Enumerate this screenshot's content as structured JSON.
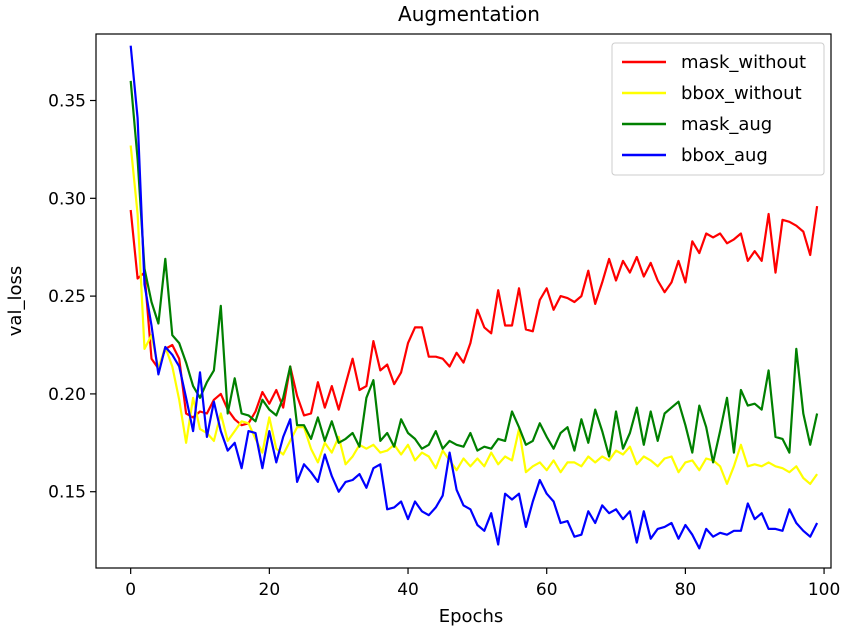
{
  "chart_data": {
    "type": "line",
    "title": "Augmentation",
    "xlabel": "Epochs",
    "ylabel": "val_loss",
    "xlim": [
      -5,
      101
    ],
    "ylim": [
      0.111,
      0.384
    ],
    "xticks": [
      0,
      20,
      40,
      60,
      80,
      100
    ],
    "yticks": [
      0.15,
      0.2,
      0.25,
      0.3,
      0.35
    ],
    "ytick_labels": [
      "0.15",
      "0.20",
      "0.25",
      "0.30",
      "0.35"
    ],
    "xtick_labels": [
      "0",
      "20",
      "40",
      "60",
      "80",
      "100"
    ],
    "grid": false,
    "legend": "top-right",
    "x": [
      0,
      1,
      2,
      3,
      4,
      5,
      6,
      7,
      8,
      9,
      10,
      11,
      12,
      13,
      14,
      15,
      16,
      17,
      18,
      19,
      20,
      21,
      22,
      23,
      24,
      25,
      26,
      27,
      28,
      29,
      30,
      31,
      32,
      33,
      34,
      35,
      36,
      37,
      38,
      39,
      40,
      41,
      42,
      43,
      44,
      45,
      46,
      47,
      48,
      49,
      50,
      51,
      52,
      53,
      54,
      55,
      56,
      57,
      58,
      59,
      60,
      61,
      62,
      63,
      64,
      65,
      66,
      67,
      68,
      69,
      70,
      71,
      72,
      73,
      74,
      75,
      76,
      77,
      78,
      79,
      80,
      81,
      82,
      83,
      84,
      85,
      86,
      87,
      88,
      89,
      90,
      91,
      92,
      93,
      94,
      95,
      96,
      97,
      98,
      99
    ],
    "series": [
      {
        "name": "mask_without",
        "color": "#ff0000",
        "values": [
          0.294,
          0.259,
          0.262,
          0.218,
          0.213,
          0.223,
          0.225,
          0.218,
          0.19,
          0.188,
          0.191,
          0.19,
          0.197,
          0.2,
          0.192,
          0.187,
          0.184,
          0.185,
          0.191,
          0.201,
          0.195,
          0.202,
          0.193,
          0.214,
          0.199,
          0.189,
          0.19,
          0.206,
          0.193,
          0.204,
          0.192,
          0.205,
          0.218,
          0.202,
          0.204,
          0.227,
          0.212,
          0.215,
          0.205,
          0.211,
          0.226,
          0.234,
          0.234,
          0.219,
          0.219,
          0.218,
          0.214,
          0.221,
          0.216,
          0.226,
          0.243,
          0.234,
          0.231,
          0.253,
          0.235,
          0.235,
          0.254,
          0.233,
          0.232,
          0.248,
          0.254,
          0.243,
          0.25,
          0.249,
          0.247,
          0.25,
          0.263,
          0.246,
          0.257,
          0.269,
          0.258,
          0.268,
          0.262,
          0.27,
          0.26,
          0.267,
          0.258,
          0.252,
          0.257,
          0.268,
          0.257,
          0.278,
          0.272,
          0.282,
          0.28,
          0.282,
          0.277,
          0.279,
          0.282,
          0.268,
          0.273,
          0.268,
          0.292,
          0.262,
          0.289,
          0.288,
          0.286,
          0.283,
          0.271,
          0.296
        ]
      },
      {
        "name": "bbox_without",
        "color": "#ffff00",
        "values": [
          0.327,
          0.292,
          0.223,
          0.23,
          0.213,
          0.224,
          0.214,
          0.197,
          0.175,
          0.198,
          0.182,
          0.18,
          0.176,
          0.19,
          0.176,
          0.181,
          0.186,
          0.185,
          0.177,
          0.17,
          0.188,
          0.172,
          0.169,
          0.176,
          0.183,
          0.183,
          0.172,
          0.165,
          0.175,
          0.17,
          0.178,
          0.164,
          0.168,
          0.174,
          0.172,
          0.174,
          0.17,
          0.171,
          0.174,
          0.169,
          0.174,
          0.166,
          0.17,
          0.168,
          0.162,
          0.171,
          0.166,
          0.161,
          0.167,
          0.163,
          0.167,
          0.163,
          0.17,
          0.164,
          0.168,
          0.166,
          0.182,
          0.16,
          0.163,
          0.165,
          0.161,
          0.166,
          0.16,
          0.165,
          0.165,
          0.163,
          0.168,
          0.165,
          0.168,
          0.166,
          0.171,
          0.169,
          0.173,
          0.164,
          0.168,
          0.166,
          0.163,
          0.167,
          0.168,
          0.16,
          0.165,
          0.166,
          0.161,
          0.167,
          0.166,
          0.163,
          0.154,
          0.163,
          0.174,
          0.163,
          0.164,
          0.163,
          0.165,
          0.163,
          0.162,
          0.16,
          0.163,
          0.157,
          0.154,
          0.159
        ]
      },
      {
        "name": "mask_aug",
        "color": "#008000",
        "values": [
          0.36,
          0.32,
          0.264,
          0.247,
          0.236,
          0.269,
          0.23,
          0.226,
          0.216,
          0.204,
          0.198,
          0.206,
          0.212,
          0.245,
          0.19,
          0.208,
          0.19,
          0.189,
          0.186,
          0.197,
          0.192,
          0.189,
          0.198,
          0.214,
          0.184,
          0.184,
          0.177,
          0.188,
          0.176,
          0.186,
          0.175,
          0.177,
          0.18,
          0.173,
          0.198,
          0.207,
          0.176,
          0.18,
          0.173,
          0.187,
          0.18,
          0.177,
          0.172,
          0.174,
          0.181,
          0.172,
          0.176,
          0.174,
          0.173,
          0.18,
          0.171,
          0.173,
          0.172,
          0.177,
          0.176,
          0.191,
          0.183,
          0.174,
          0.176,
          0.185,
          0.178,
          0.172,
          0.18,
          0.183,
          0.171,
          0.187,
          0.175,
          0.192,
          0.181,
          0.168,
          0.191,
          0.172,
          0.18,
          0.193,
          0.174,
          0.191,
          0.176,
          0.19,
          0.193,
          0.196,
          0.184,
          0.17,
          0.194,
          0.183,
          0.165,
          0.181,
          0.198,
          0.17,
          0.202,
          0.194,
          0.195,
          0.192,
          0.212,
          0.178,
          0.177,
          0.17,
          0.223,
          0.19,
          0.174,
          0.19
        ]
      },
      {
        "name": "bbox_aug",
        "color": "#0000ff",
        "values": [
          0.378,
          0.341,
          0.256,
          0.235,
          0.21,
          0.224,
          0.22,
          0.214,
          0.198,
          0.181,
          0.211,
          0.178,
          0.196,
          0.181,
          0.171,
          0.175,
          0.162,
          0.181,
          0.18,
          0.162,
          0.181,
          0.165,
          0.178,
          0.187,
          0.155,
          0.164,
          0.16,
          0.155,
          0.169,
          0.158,
          0.15,
          0.155,
          0.156,
          0.159,
          0.152,
          0.162,
          0.164,
          0.141,
          0.142,
          0.145,
          0.136,
          0.145,
          0.14,
          0.138,
          0.142,
          0.148,
          0.17,
          0.151,
          0.143,
          0.141,
          0.133,
          0.13,
          0.139,
          0.123,
          0.149,
          0.146,
          0.149,
          0.132,
          0.145,
          0.156,
          0.149,
          0.145,
          0.134,
          0.135,
          0.127,
          0.128,
          0.14,
          0.134,
          0.143,
          0.139,
          0.141,
          0.136,
          0.14,
          0.124,
          0.14,
          0.126,
          0.131,
          0.132,
          0.134,
          0.126,
          0.133,
          0.128,
          0.121,
          0.131,
          0.127,
          0.129,
          0.128,
          0.13,
          0.13,
          0.144,
          0.136,
          0.139,
          0.131,
          0.131,
          0.13,
          0.141,
          0.134,
          0.13,
          0.127,
          0.134
        ]
      }
    ]
  }
}
